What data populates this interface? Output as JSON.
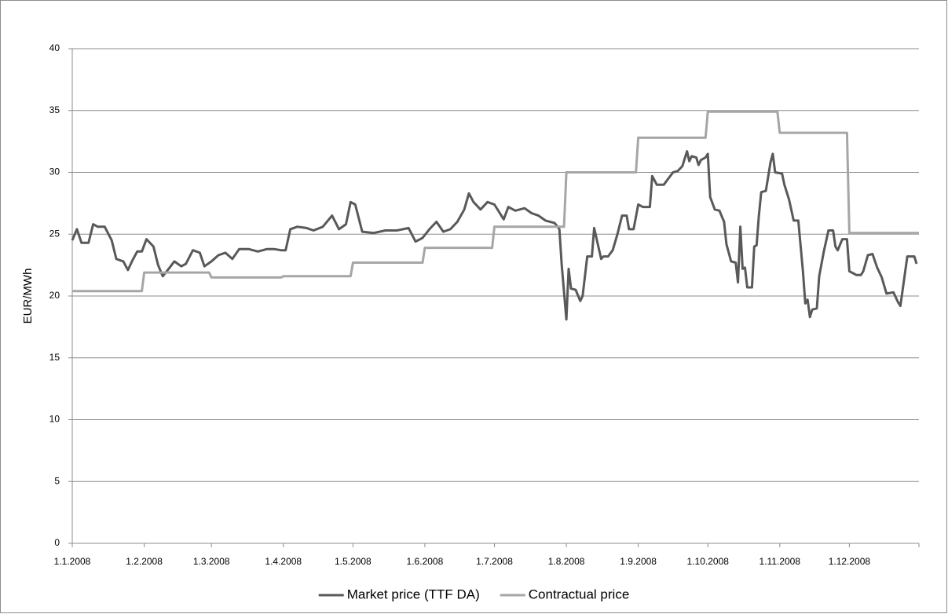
{
  "chart_data": {
    "type": "line",
    "y_label": "EUR/MWh",
    "ylim": [
      0,
      40
    ],
    "yticks": [
      0,
      5,
      10,
      15,
      20,
      25,
      30,
      35,
      40
    ],
    "grid": true,
    "xlim": [
      "1.1.2008",
      "31.12.2008"
    ],
    "xticks": [
      "1.1.2008",
      "1.2.2008",
      "1.3.2008",
      "1.4.2008",
      "1.5.2008",
      "1.6.2008",
      "1.7.2008",
      "1.8.2008",
      "1.9.2008",
      "1.10.2008",
      "1.11.2008",
      "1.12.2008"
    ],
    "legend": "bottom",
    "series": [
      {
        "name": "Market price (TTF DA)",
        "color": "#595959",
        "x": [
          "1.1.2008",
          "3.1.2008",
          "5.1.2008",
          "8.1.2008",
          "10.1.2008",
          "12.1.2008",
          "15.1.2008",
          "18.1.2008",
          "20.1.2008",
          "23.1.2008",
          "25.1.2008",
          "27.1.2008",
          "29.1.2008",
          "31.1.2008",
          "2.2.2008",
          "5.2.2008",
          "7.2.2008",
          "9.2.2008",
          "12.2.2008",
          "14.2.2008",
          "17.2.2008",
          "19.2.2008",
          "22.2.2008",
          "25.2.2008",
          "27.2.2008",
          "1.3.2008",
          "4.3.2008",
          "7.3.2008",
          "10.3.2008",
          "13.3.2008",
          "17.3.2008",
          "21.3.2008",
          "25.3.2008",
          "28.3.2008",
          "31.3.2008",
          "2.4.2008",
          "4.4.2008",
          "7.4.2008",
          "11.4.2008",
          "14.4.2008",
          "18.4.2008",
          "22.4.2008",
          "25.4.2008",
          "28.4.2008",
          "30.4.2008",
          "2.5.2008",
          "5.5.2008",
          "10.5.2008",
          "15.5.2008",
          "20.5.2008",
          "25.5.2008",
          "28.5.2008",
          "31.5.2008",
          "3.6.2008",
          "6.6.2008",
          "9.6.2008",
          "12.6.2008",
          "15.6.2008",
          "18.6.2008",
          "20.6.2008",
          "22.6.2008",
          "25.6.2008",
          "28.6.2008",
          "1.7.2008",
          "5.7.2008",
          "7.7.2008",
          "10.7.2008",
          "14.7.2008",
          "17.7.2008",
          "20.7.2008",
          "23.7.2008",
          "27.7.2008",
          "29.7.2008",
          "30.7.2008",
          "1.8.2008",
          "2.8.2008",
          "3.8.2008",
          "5.8.2008",
          "7.8.2008",
          "8.8.2008",
          "10.8.2008",
          "12.8.2008",
          "13.8.2008",
          "16.8.2008",
          "17.8.2008",
          "19.8.2008",
          "21.8.2008",
          "23.8.2008",
          "25.8.2008",
          "27.8.2008",
          "28.8.2008",
          "30.8.2008",
          "1.9.2008",
          "3.9.2008",
          "6.9.2008",
          "7.9.2008",
          "9.9.2008",
          "12.9.2008",
          "14.9.2008",
          "16.9.2008",
          "18.9.2008",
          "20.9.2008",
          "22.9.2008",
          "23.9.2008",
          "24.9.2008",
          "26.9.2008",
          "27.9.2008",
          "28.9.2008",
          "30.9.2008",
          "1.10.2008",
          "2.10.2008",
          "4.10.2008",
          "6.10.2008",
          "8.10.2008",
          "9.10.2008",
          "11.10.2008",
          "13.10.2008",
          "14.10.2008",
          "15.10.2008",
          "16.10.2008",
          "17.10.2008",
          "18.10.2008",
          "20.10.2008",
          "21.10.2008",
          "22.10.2008",
          "23.10.2008",
          "24.10.2008",
          "26.10.2008",
          "28.10.2008",
          "29.10.2008",
          "30.10.2008",
          "2.11.2008",
          "3.11.2008",
          "5.11.2008",
          "7.11.2008",
          "9.11.2008",
          "11.11.2008",
          "12.11.2008",
          "13.11.2008",
          "14.11.2008",
          "15.11.2008",
          "17.11.2008",
          "18.11.2008",
          "20.11.2008",
          "22.11.2008",
          "24.11.2008",
          "25.11.2008",
          "26.11.2008",
          "28.11.2008",
          "30.11.2008",
          "1.12.2008",
          "4.12.2008",
          "6.12.2008",
          "7.12.2008",
          "9.12.2008",
          "11.12.2008",
          "13.12.2008",
          "15.12.2008",
          "17.12.2008",
          "20.12.2008",
          "22.12.2008",
          "23.12.2008",
          "26.12.2008",
          "29.12.2008",
          "30.12.2008"
        ],
        "values": [
          24.5,
          25.4,
          24.3,
          24.3,
          25.8,
          25.6,
          25.6,
          24.5,
          23.0,
          22.8,
          22.1,
          22.9,
          23.6,
          23.6,
          24.6,
          24.0,
          22.5,
          21.6,
          22.3,
          22.8,
          22.4,
          22.6,
          23.7,
          23.5,
          22.4,
          22.8,
          23.3,
          23.5,
          23.0,
          23.8,
          23.8,
          23.6,
          23.8,
          23.8,
          23.7,
          23.7,
          25.4,
          25.6,
          25.5,
          25.3,
          25.6,
          26.5,
          25.4,
          25.8,
          27.6,
          27.4,
          25.2,
          25.1,
          25.3,
          25.3,
          25.5,
          24.4,
          24.7,
          25.4,
          26.0,
          25.2,
          25.4,
          26.0,
          27.0,
          28.3,
          27.6,
          27.0,
          27.6,
          27.4,
          26.2,
          27.2,
          26.9,
          27.1,
          26.7,
          26.5,
          26.1,
          25.9,
          25.4,
          22.5,
          18.1,
          22.2,
          20.6,
          20.5,
          19.6,
          20.0,
          23.2,
          23.2,
          25.5,
          23.0,
          23.2,
          23.2,
          23.7,
          25.0,
          26.5,
          26.5,
          25.4,
          25.4,
          27.4,
          27.2,
          27.2,
          29.7,
          29.0,
          29.0,
          29.5,
          30.0,
          30.1,
          30.5,
          31.7,
          30.9,
          31.3,
          31.2,
          30.6,
          31.0,
          31.2,
          31.5,
          28.0,
          27.0,
          26.9,
          26.0,
          24.2,
          22.8,
          22.7,
          21.1,
          25.6,
          22.2,
          22.3,
          20.7,
          20.7,
          24.0,
          24.1,
          26.5,
          28.4,
          28.5,
          30.8,
          31.5,
          30.0,
          29.9,
          29.0,
          27.8,
          26.1,
          26.1,
          22.0,
          19.4,
          19.7,
          18.3,
          18.9,
          19.0,
          21.6,
          23.6,
          25.3,
          25.3,
          24.0,
          23.7,
          24.6,
          24.6,
          22.0,
          21.7,
          21.7,
          22.0,
          23.3,
          23.4,
          22.3,
          21.5,
          20.2,
          20.3,
          19.5,
          19.2,
          23.2,
          23.2,
          22.6
        ]
      },
      {
        "name": "Contractual price",
        "color": "#a6a6a6",
        "x": [
          "1.1.2008",
          "31.1.2008",
          "1.2.2008",
          "29.2.2008",
          "1.3.2008",
          "31.3.2008",
          "1.4.2008",
          "30.4.2008",
          "1.5.2008",
          "31.5.2008",
          "1.6.2008",
          "30.6.2008",
          "1.7.2008",
          "31.7.2008",
          "1.8.2008",
          "31.8.2008",
          "1.9.2008",
          "30.9.2008",
          "1.10.2008",
          "31.10.2008",
          "1.11.2008",
          "30.11.2008",
          "1.12.2008",
          "31.12.2008"
        ],
        "values": [
          20.4,
          20.4,
          21.9,
          21.9,
          21.5,
          21.5,
          21.6,
          21.6,
          22.7,
          22.7,
          23.9,
          23.9,
          25.6,
          25.6,
          30.0,
          30.0,
          32.8,
          32.8,
          34.9,
          34.9,
          33.2,
          33.2,
          25.1,
          25.1
        ]
      }
    ]
  }
}
